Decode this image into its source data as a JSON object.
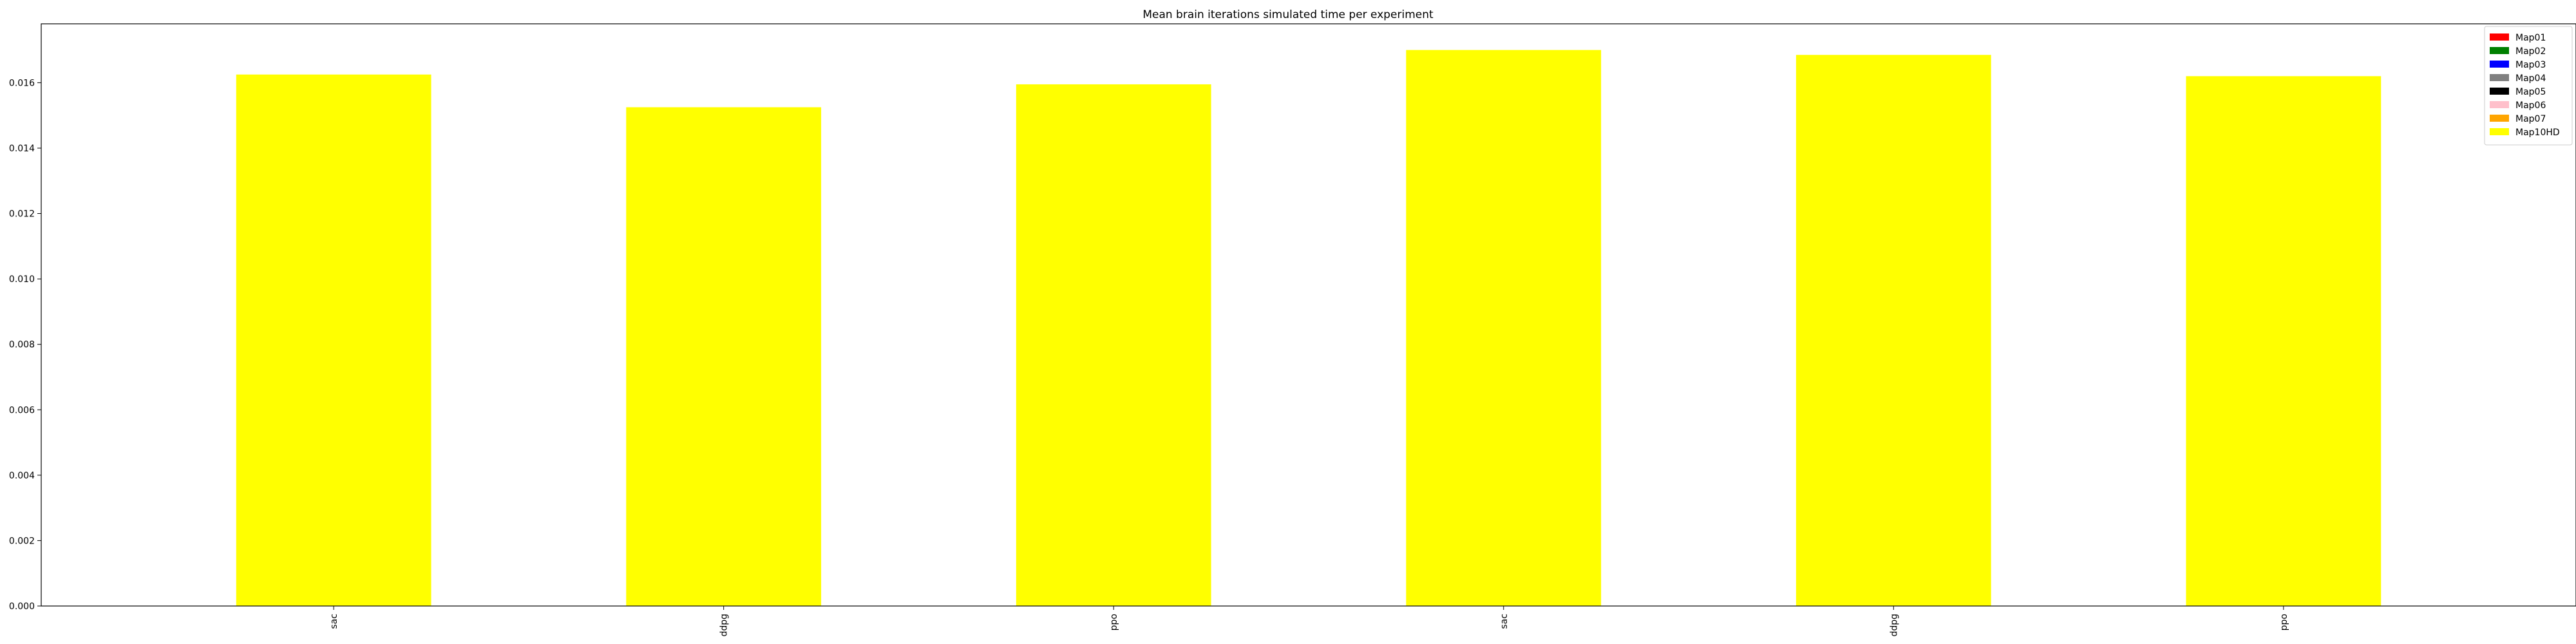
{
  "chart_data": {
    "type": "bar",
    "title": "Mean brain iterations simulated time per experiment",
    "xlabel": "",
    "ylabel": "",
    "categories": [
      "sac",
      "ddpg",
      "ppo",
      "sac",
      "ddpg",
      "ppo"
    ],
    "values": [
      0.01625,
      0.01525,
      0.01595,
      0.017,
      0.01685,
      0.0162
    ],
    "bar_color": "#ffff00",
    "ylim": [
      0,
      0.0178
    ],
    "yticks": [
      "0.000",
      "0.002",
      "0.004",
      "0.006",
      "0.008",
      "0.010",
      "0.012",
      "0.014",
      "0.016"
    ],
    "grid": false,
    "legend": {
      "placement": "top-right",
      "entries": [
        {
          "label": "Map01",
          "color": "#ff0000"
        },
        {
          "label": "Map02",
          "color": "#008000"
        },
        {
          "label": "Map03",
          "color": "#0000ff"
        },
        {
          "label": "Map04",
          "color": "#808080"
        },
        {
          "label": "Map05",
          "color": "#000000"
        },
        {
          "label": "Map06",
          "color": "#ffc0cb"
        },
        {
          "label": "Map07",
          "color": "#ffa500"
        },
        {
          "label": "Map10HD",
          "color": "#ffff00"
        }
      ]
    }
  }
}
